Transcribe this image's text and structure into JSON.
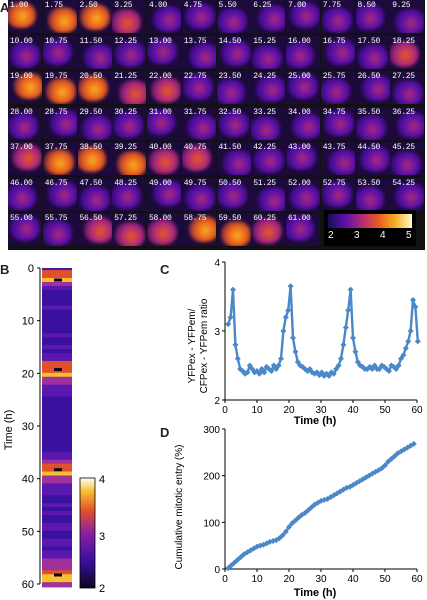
{
  "panels": {
    "a": "A",
    "b": "B",
    "c": "C",
    "d": "D"
  },
  "panelA": {
    "frame_labels": [
      "1.00",
      "1.75",
      "2.50",
      "3.25",
      "4.00",
      "4.75",
      "5.50",
      "6.25",
      "7.00",
      "7.75",
      "8.50",
      "9.25",
      "10.00",
      "10.75",
      "11.50",
      "12.25",
      "13.00",
      "13.75",
      "14.50",
      "15.25",
      "16.00",
      "16.75",
      "17.50",
      "18.25",
      "19.00",
      "19.75",
      "20.50",
      "21.25",
      "22.00",
      "22.75",
      "23.50",
      "24.25",
      "25.00",
      "25.75",
      "26.50",
      "27.25",
      "28.00",
      "28.75",
      "29.50",
      "30.25",
      "31.00",
      "31.75",
      "32.50",
      "33.25",
      "34.00",
      "34.75",
      "35.50",
      "36.25",
      "37.00",
      "37.75",
      "38.50",
      "39.25",
      "40.00",
      "40.75",
      "41.50",
      "42.25",
      "43.00",
      "43.75",
      "44.50",
      "45.25",
      "46.00",
      "46.75",
      "47.50",
      "48.25",
      "49.00",
      "49.75",
      "50.50",
      "51.25",
      "52.00",
      "52.75",
      "53.50",
      "54.25",
      "55.00",
      "55.75",
      "56.50",
      "57.25",
      "58.00",
      "58.75",
      "59.50",
      "60.25",
      "61.00"
    ],
    "colorbar_ticks": [
      "2",
      "3",
      "4",
      "5"
    ],
    "colormap": [
      "#1a0a5a",
      "#5a10a8",
      "#b02a7a",
      "#e85a20",
      "#f7b020",
      "#fff8d0"
    ]
  },
  "panelB": {
    "ylabel": "Time (h)",
    "yticks": [
      "0",
      "10",
      "20",
      "30",
      "40",
      "50",
      "60"
    ],
    "colorbar_ticks": [
      "2",
      "3",
      "4"
    ],
    "colormap": [
      "#0a0620",
      "#3a10a0",
      "#8a20a0",
      "#e0502a",
      "#f8c030",
      "#ffffff"
    ]
  },
  "panelC": {
    "ylabel_line1": "YFPex - YFPem/",
    "ylabel_line2": "CFPex - YFPem ratio",
    "xlabel": "Time (h)",
    "xticks": [
      "0",
      "10",
      "20",
      "30",
      "40",
      "50",
      "60"
    ],
    "yticks": [
      "2",
      "3",
      "4"
    ],
    "color": "#4a88c8"
  },
  "panelD": {
    "ylabel": "Cumulative mitotic entry (%)",
    "xlabel": "Time (h)",
    "xticks": [
      "0",
      "10",
      "20",
      "30",
      "40",
      "50",
      "60"
    ],
    "yticks": [
      "0",
      "100",
      "200",
      "300"
    ],
    "color": "#4a88c8"
  },
  "chart_data": [
    {
      "type": "line",
      "xlabel": "Time (h)",
      "ylabel": "YFPex - YFPem/ CFPex - YFPem ratio",
      "xlim": [
        0,
        60
      ],
      "ylim": [
        2,
        4
      ],
      "x": [
        1,
        1.75,
        2.5,
        3.25,
        4,
        4.75,
        5.5,
        6.25,
        7,
        7.75,
        8.5,
        9.25,
        10,
        10.75,
        11.5,
        12.25,
        13,
        13.75,
        14.5,
        15.25,
        16,
        16.75,
        17.5,
        18.25,
        19,
        19.75,
        20.5,
        21.25,
        22,
        22.75,
        23.5,
        24.25,
        25,
        25.75,
        26.5,
        27.25,
        28,
        28.75,
        29.5,
        30.25,
        31,
        31.75,
        32.5,
        33.25,
        34,
        34.75,
        35.5,
        36.25,
        37,
        37.75,
        38.5,
        39.25,
        40,
        40.75,
        41.5,
        42.25,
        43,
        43.75,
        44.5,
        45.25,
        46,
        46.75,
        47.5,
        48.25,
        49,
        49.75,
        50.5,
        51.25,
        52,
        52.75,
        53.5,
        54.25,
        55,
        55.75,
        56.5,
        57.25,
        58,
        58.75,
        59.5,
        60.25
      ],
      "y": [
        3.1,
        3.2,
        3.6,
        2.8,
        2.6,
        2.45,
        2.42,
        2.38,
        2.4,
        2.5,
        2.45,
        2.4,
        2.42,
        2.38,
        2.45,
        2.4,
        2.48,
        2.45,
        2.42,
        2.5,
        2.45,
        2.5,
        2.6,
        3.0,
        3.2,
        3.3,
        3.65,
        2.9,
        2.7,
        2.55,
        2.5,
        2.48,
        2.45,
        2.42,
        2.45,
        2.4,
        2.38,
        2.4,
        2.36,
        2.4,
        2.35,
        2.38,
        2.35,
        2.4,
        2.38,
        2.45,
        2.5,
        2.6,
        2.8,
        3.05,
        3.3,
        3.6,
        2.9,
        2.7,
        2.55,
        2.5,
        2.48,
        2.45,
        2.45,
        2.48,
        2.45,
        2.5,
        2.45,
        2.45,
        2.5,
        2.48,
        2.45,
        2.42,
        2.5,
        2.48,
        2.45,
        2.5,
        2.6,
        2.65,
        2.75,
        2.85,
        3.0,
        3.45,
        3.35,
        2.85
      ]
    },
    {
      "type": "line",
      "xlabel": "Time (h)",
      "ylabel": "Cumulative mitotic entry (%)",
      "xlim": [
        0,
        60
      ],
      "ylim": [
        0,
        300
      ],
      "x": [
        1,
        2,
        3,
        4,
        5,
        6,
        7,
        8,
        9,
        10,
        11,
        12,
        13,
        14,
        15,
        16,
        17,
        18,
        19,
        20,
        21,
        22,
        23,
        24,
        25,
        26,
        27,
        28,
        29,
        30,
        31,
        32,
        33,
        34,
        35,
        36,
        37,
        38,
        39,
        40,
        41,
        42,
        43,
        44,
        45,
        46,
        47,
        48,
        49,
        50,
        51,
        52,
        53,
        54,
        55,
        56,
        57,
        58,
        59
      ],
      "y": [
        2,
        8,
        14,
        20,
        26,
        32,
        36,
        40,
        44,
        48,
        50,
        52,
        55,
        58,
        60,
        62,
        66,
        72,
        80,
        90,
        98,
        104,
        110,
        116,
        120,
        126,
        132,
        138,
        142,
        146,
        148,
        150,
        154,
        158,
        162,
        166,
        170,
        174,
        176,
        180,
        184,
        188,
        192,
        196,
        200,
        204,
        208,
        212,
        216,
        222,
        230,
        236,
        242,
        248,
        252,
        256,
        260,
        264,
        268
      ]
    }
  ]
}
